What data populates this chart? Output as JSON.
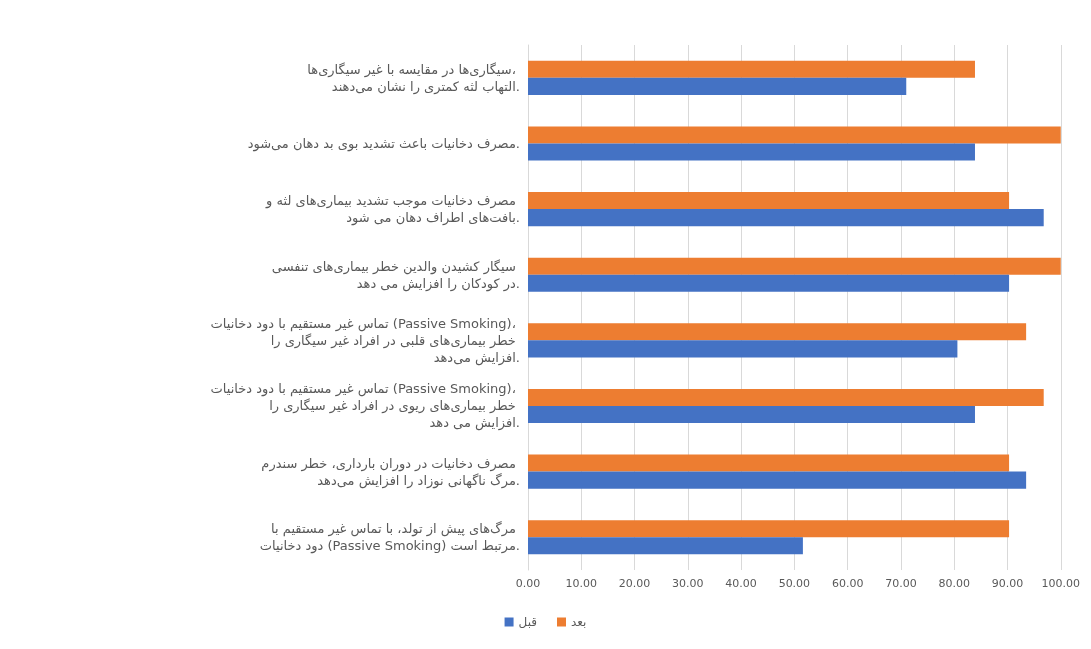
{
  "chart_data": {
    "type": "bar",
    "orientation": "horizontal",
    "categories": [
      "سیگاری‌ها در مقایسه با غیر سیگاری‌ها، التهاب لثه کمتری را نشان می‌دهند.",
      "مصرف دخانیات باعث تشدید بوی بد دهان می‌شود.",
      "مصرف دخانیات موجب تشدید بیماری‌های لثه و بافت‌های اطراف دهان می شود.",
      "سیگار کشیدن والدین خطر بیماری‌های تنفسی در کودکان را افزایش می دهد.",
      "تماس غیر مستقیم با دود دخانیات (Passive Smoking)، خطر بیماری‌های قلبی در افراد غیر سیگاری را افزایش می‌دهد.",
      "تماس غیر مستقیم با دود دخانیات (Passive Smoking)، خطر بیماری‌های ریوی در افراد غیر سیگاری را افزایش می دهد.",
      "مصرف دخانیات در دوران بارداری، خطر سندرم مرگ ناگهانی نوزاد را افزایش می‌دهد.",
      "مرگ‌های پیش از تولد، با تماس غیر مستقیم با دود دخانیات (Passive Smoking) مرتبط است."
    ],
    "series": [
      {
        "name": "بعد",
        "color": "#ed7d31",
        "values": [
          83.9,
          100,
          90.3,
          100,
          93.5,
          96.8,
          90.3,
          90.3
        ]
      },
      {
        "name": "قبل",
        "color": "#4472c4",
        "values": [
          71.0,
          83.9,
          96.8,
          90.3,
          80.6,
          83.9,
          93.5,
          51.6
        ]
      }
    ],
    "xlim": [
      0,
      100
    ],
    "xticks": [
      {
        "value": 0,
        "label": "0.00"
      },
      {
        "value": 10,
        "label": "10.00"
      },
      {
        "value": 20,
        "label": "20.00"
      },
      {
        "value": 30,
        "label": "30.00"
      },
      {
        "value": 40,
        "label": "40.00"
      },
      {
        "value": 50,
        "label": "50.00"
      },
      {
        "value": 60,
        "label": "60.00"
      },
      {
        "value": 70,
        "label": "70.00"
      },
      {
        "value": 80,
        "label": "80.00"
      },
      {
        "value": 90,
        "label": "90.00"
      },
      {
        "value": 100,
        "label": "100.00"
      }
    ],
    "grid": "x",
    "legend": "bottom"
  }
}
